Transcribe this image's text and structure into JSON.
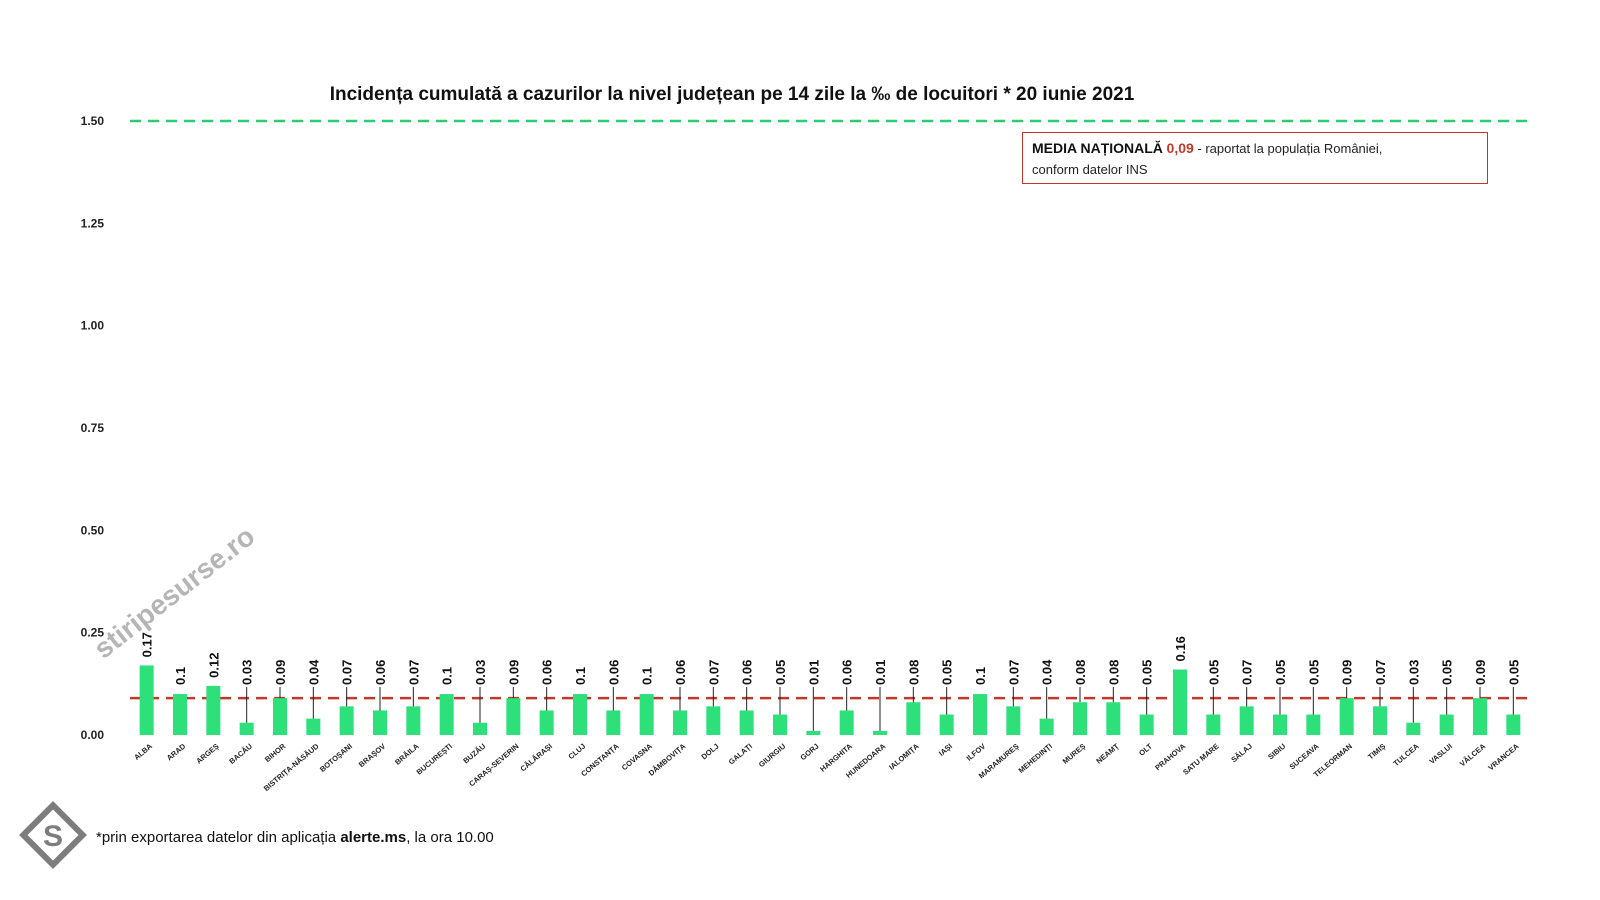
{
  "chart_data": {
    "type": "bar",
    "title": "Incidența cumulată a cazurilor la nivel județean pe 14 zile la ‰ de locuitori *  20 iunie 2021",
    "categories": [
      "ALBA",
      "ARAD",
      "ARGEȘ",
      "BACĂU",
      "BIHOR",
      "BISTRIȚA-NĂSĂUD",
      "BOTOȘANI",
      "BRAȘOV",
      "BRĂILA",
      "BUCUREȘTI",
      "BUZĂU",
      "CARAȘ-SEVERIN",
      "CĂLĂRAȘI",
      "CLUJ",
      "CONSTANȚA",
      "COVASNA",
      "DÂMBOVIȚA",
      "DOLJ",
      "GALAȚI",
      "GIURGIU",
      "GORJ",
      "HARGHITA",
      "HUNEDOARA",
      "IALOMIȚA",
      "IAȘI",
      "ILFOV",
      "MARAMUREȘ",
      "MEHEDINȚI",
      "MUREȘ",
      "NEAMȚ",
      "OLT",
      "PRAHOVA",
      "SATU MARE",
      "SĂLAJ",
      "SIBIU",
      "SUCEAVA",
      "TELEORMAN",
      "TIMIȘ",
      "TULCEA",
      "VASLUI",
      "VÂLCEA",
      "VRANCEA"
    ],
    "values": [
      0.17,
      0.1,
      0.12,
      0.03,
      0.09,
      0.04,
      0.07,
      0.06,
      0.07,
      0.1,
      0.03,
      0.09,
      0.06,
      0.1,
      0.06,
      0.1,
      0.06,
      0.07,
      0.06,
      0.05,
      0.01,
      0.06,
      0.01,
      0.08,
      0.05,
      0.1,
      0.07,
      0.04,
      0.08,
      0.08,
      0.05,
      0.16,
      0.05,
      0.07,
      0.05,
      0.05,
      0.09,
      0.07,
      0.03,
      0.05,
      0.09,
      0.05
    ],
    "data_labels": [
      "0.17",
      "0.1",
      "0.12",
      "0.03",
      "0.09",
      "0.04",
      "0.07",
      "0.06",
      "0.07",
      "0.1",
      "0.03",
      "0.09",
      "0.06",
      "0.1",
      "0.06",
      "0.1",
      "0.06",
      "0.07",
      "0.06",
      "0.05",
      "0.01",
      "0.06",
      "0.01",
      "0.08",
      "0.05",
      "0.1",
      "0.07",
      "0.04",
      "0.08",
      "0.08",
      "0.05",
      "0.16",
      "0.05",
      "0.07",
      "0.05",
      "0.05",
      "0.09",
      "0.07",
      "0.03",
      "0.05",
      "0.09",
      "0.05"
    ],
    "yticks": [
      "0.00",
      "0.25",
      "0.50",
      "0.75",
      "1.00",
      "1.25",
      "1.50"
    ],
    "ytick_values": [
      0,
      0.25,
      0.5,
      0.75,
      1.0,
      1.25,
      1.5
    ],
    "ylim": [
      0,
      1.5
    ],
    "xlabel": "",
    "ylabel": "",
    "grid": false,
    "reference_lines": [
      {
        "value": 1.5,
        "color": "#2ecc71",
        "style": "dashed"
      },
      {
        "value": 0.09,
        "color": "#c0392b",
        "style": "dashed"
      }
    ],
    "bar_color": "#2ee07a"
  },
  "legend": {
    "title": "MEDIA NAȚIONALĂ",
    "value": "0,09",
    "text_line1": " - raportat la populația României,",
    "text_line2": "conform datelor INS",
    "border_color": "#c0392b",
    "placement": "top-right"
  },
  "footnote": {
    "prefix": "*prin exportarea datelor din aplicația ",
    "bold": "alerte.ms",
    "suffix": ", la ora 10.00"
  },
  "watermark": {
    "text": "stiripesurse.ro",
    "icon": "stiripesurse-logo-icon"
  }
}
